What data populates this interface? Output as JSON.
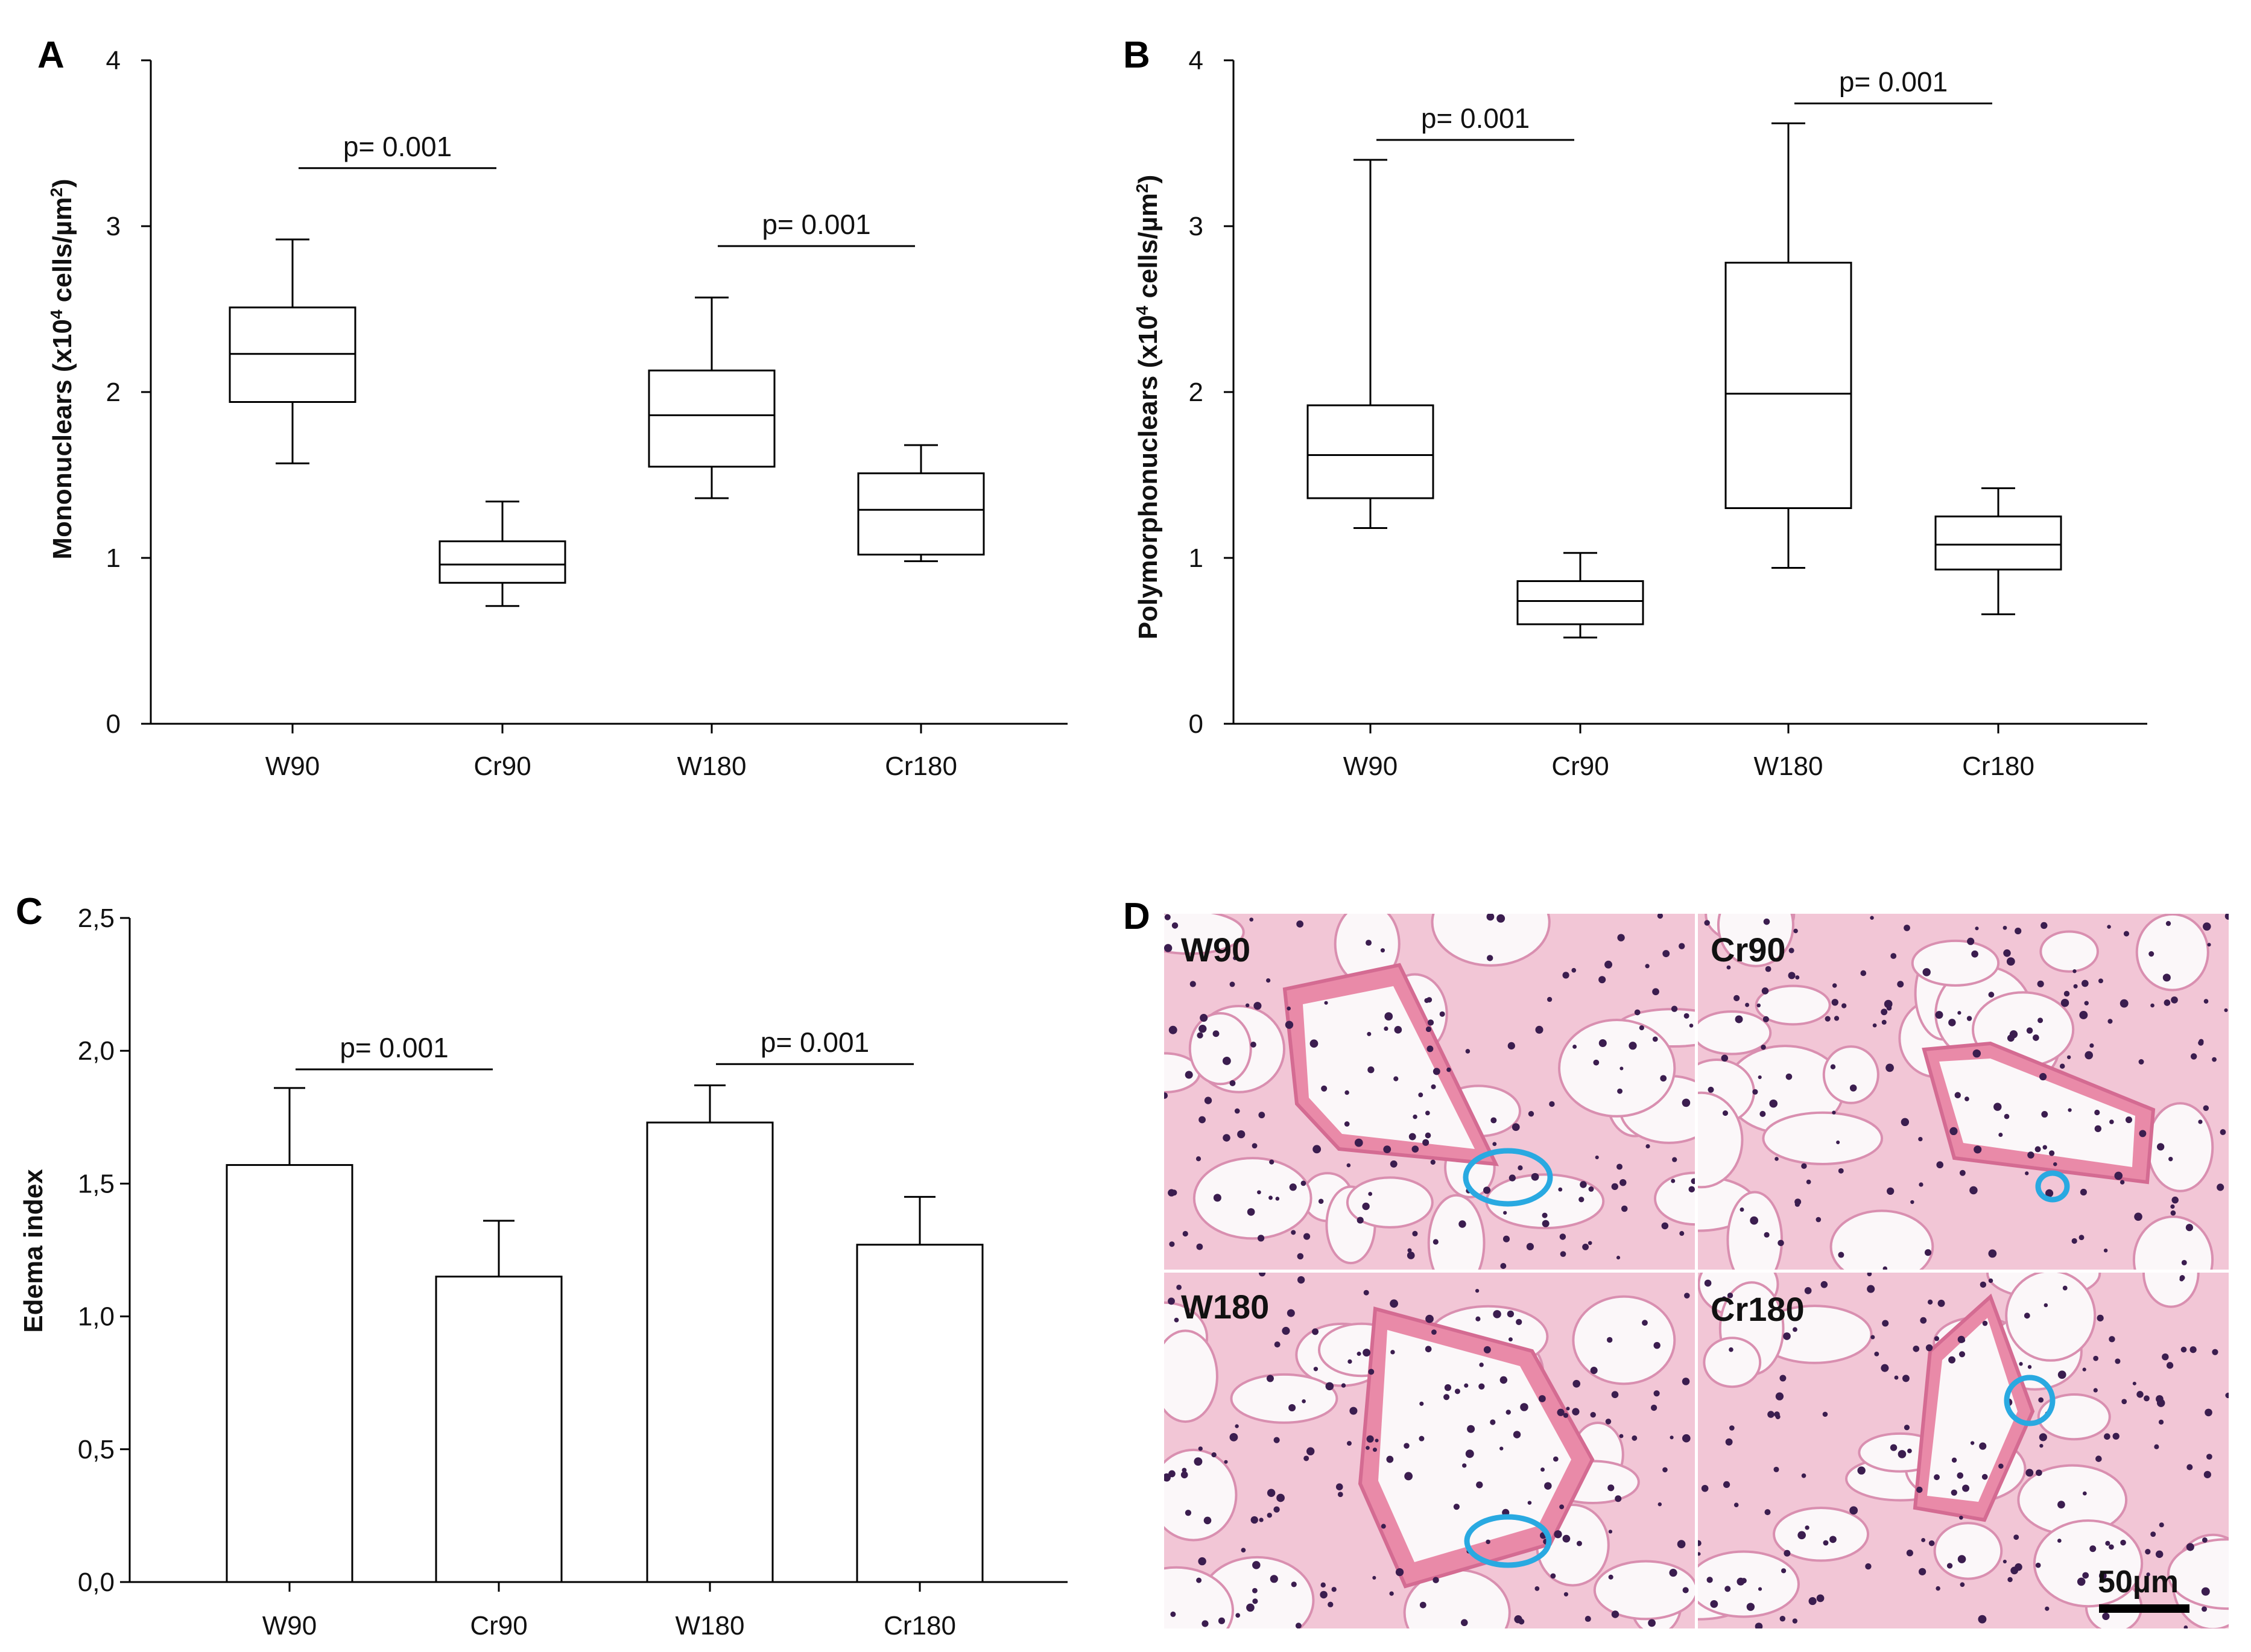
{
  "chart_data": [
    {
      "panel": "A",
      "type": "box",
      "ylabel_main": "Mononuclears (x10",
      "ylabel_sup": "4",
      "ylabel_rest": " cells/µm",
      "ylabel_sup2": "2",
      "ylabel_close": ")",
      "ylim": [
        0,
        4
      ],
      "yticks": [
        "0",
        "1",
        "2",
        "3",
        "4"
      ],
      "categories": [
        "W90",
        "Cr90",
        "W180",
        "Cr180"
      ],
      "boxes": [
        {
          "min": 1.57,
          "q1": 1.94,
          "median": 2.23,
          "q3": 2.51,
          "max": 2.92
        },
        {
          "min": 0.71,
          "q1": 0.85,
          "median": 0.96,
          "q3": 1.1,
          "max": 1.34
        },
        {
          "min": 1.36,
          "q1": 1.55,
          "median": 1.86,
          "q3": 2.13,
          "max": 2.57
        },
        {
          "min": 0.98,
          "q1": 1.02,
          "median": 1.29,
          "q3": 1.51,
          "max": 1.68
        }
      ],
      "annotations": [
        {
          "text": "p= 0.001",
          "from": 0,
          "to": 1,
          "y": 3.35
        },
        {
          "text": "p= 0.001",
          "from": 2,
          "to": 3,
          "y": 2.88
        }
      ]
    },
    {
      "panel": "B",
      "type": "box",
      "ylabel_main": "Polymorphonuclears (x10",
      "ylabel_sup": "4",
      "ylabel_rest": " cells/µm",
      "ylabel_sup2": "2",
      "ylabel_close": ")",
      "ylim": [
        0,
        4
      ],
      "yticks": [
        "0",
        "1",
        "2",
        "3",
        "4"
      ],
      "categories": [
        "W90",
        "Cr90",
        "W180",
        "Cr180"
      ],
      "boxes": [
        {
          "min": 1.18,
          "q1": 1.36,
          "median": 1.62,
          "q3": 1.92,
          "max": 3.4
        },
        {
          "min": 0.52,
          "q1": 0.6,
          "median": 0.74,
          "q3": 0.86,
          "max": 1.03
        },
        {
          "min": 0.94,
          "q1": 1.3,
          "median": 1.99,
          "q3": 2.78,
          "max": 3.62
        },
        {
          "min": 0.66,
          "q1": 0.93,
          "median": 1.08,
          "q3": 1.25,
          "max": 1.42
        }
      ],
      "annotations": [
        {
          "text": "p= 0.001",
          "from": 0,
          "to": 1,
          "y": 3.52
        },
        {
          "text": "p= 0.001",
          "from": 2,
          "to": 3,
          "y": 3.74
        }
      ]
    },
    {
      "panel": "C",
      "type": "bar",
      "ylabel": "Edema index",
      "ylim": [
        0,
        2.5
      ],
      "yticks": [
        "0,0",
        "0,5",
        "1,0",
        "1,5",
        "2,0",
        "2,5"
      ],
      "categories": [
        "W90",
        "Cr90",
        "W180",
        "Cr180"
      ],
      "values": [
        1.57,
        1.15,
        1.73,
        1.27
      ],
      "errors": [
        0.29,
        0.21,
        0.14,
        0.18
      ],
      "annotations": [
        {
          "text": "p= 0.001",
          "from": 0,
          "to": 1,
          "y": 1.93
        },
        {
          "text": "p= 0.001",
          "from": 2,
          "to": 3,
          "y": 1.95
        }
      ]
    }
  ],
  "panel_d": {
    "letter": "D",
    "images": [
      {
        "label": "W90"
      },
      {
        "label": "Cr90"
      },
      {
        "label": "W180"
      },
      {
        "label": "Cr180"
      }
    ],
    "scale_bar_label": "50µm",
    "colors": {
      "tissue": "#f2c6d6",
      "vessel": "#e98aa8",
      "nuclei": "#3b1d4f",
      "circle": "#29a9e1",
      "background": "#fbf7f9"
    }
  }
}
